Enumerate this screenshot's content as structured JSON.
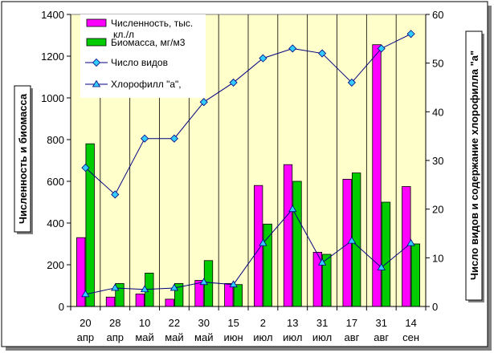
{
  "chart_data": {
    "type": "bar",
    "categories": [
      {
        "day": "20",
        "month": "апр"
      },
      {
        "day": "28",
        "month": "апр"
      },
      {
        "day": "10",
        "month": "май"
      },
      {
        "day": "22",
        "month": "май"
      },
      {
        "day": "30",
        "month": "май"
      },
      {
        "day": "15",
        "month": "июн"
      },
      {
        "day": "2",
        "month": "июл"
      },
      {
        "day": "13",
        "month": "июл"
      },
      {
        "day": "31",
        "month": "июл"
      },
      {
        "day": "17",
        "month": "авг"
      },
      {
        "day": "31",
        "month": "авг"
      },
      {
        "day": "14",
        "month": "сен"
      }
    ],
    "y_left": {
      "label": "Численность и биомасса",
      "min": 0,
      "max": 1400,
      "step": 200
    },
    "y_right": {
      "label": "Число видов и содержание хлорофилла \"а\"",
      "min": 0,
      "max": 60,
      "step": 10
    },
    "grid": "vertical",
    "legend_position": "top-left",
    "series": [
      {
        "name": "Численность, тыс. кл./л",
        "kind": "bar",
        "axis": "left",
        "color": "#ff00ff",
        "values": [
          330,
          45,
          60,
          35,
          125,
          110,
          580,
          680,
          260,
          610,
          1255,
          575
        ]
      },
      {
        "name": "Биомасса, мг/м3",
        "kind": "bar",
        "axis": "left",
        "color": "#00cc00",
        "values": [
          780,
          110,
          160,
          110,
          220,
          105,
          395,
          600,
          250,
          640,
          500,
          300
        ]
      },
      {
        "name": "Число видов",
        "kind": "line",
        "axis": "right",
        "color": "#000080",
        "marker": "diamond",
        "marker_color": "#33ccff",
        "values": [
          28.5,
          23,
          34.5,
          34.5,
          42,
          46,
          51,
          53,
          52,
          46,
          53,
          56
        ]
      },
      {
        "name": "Хлорофилл \"а\",",
        "kind": "line",
        "axis": "right",
        "color": "#000080",
        "marker": "triangle",
        "marker_color": "#33ccff",
        "values": [
          2.5,
          3.8,
          3.5,
          3.8,
          5.0,
          4.5,
          13,
          20,
          9,
          13.5,
          8,
          13
        ]
      }
    ]
  }
}
